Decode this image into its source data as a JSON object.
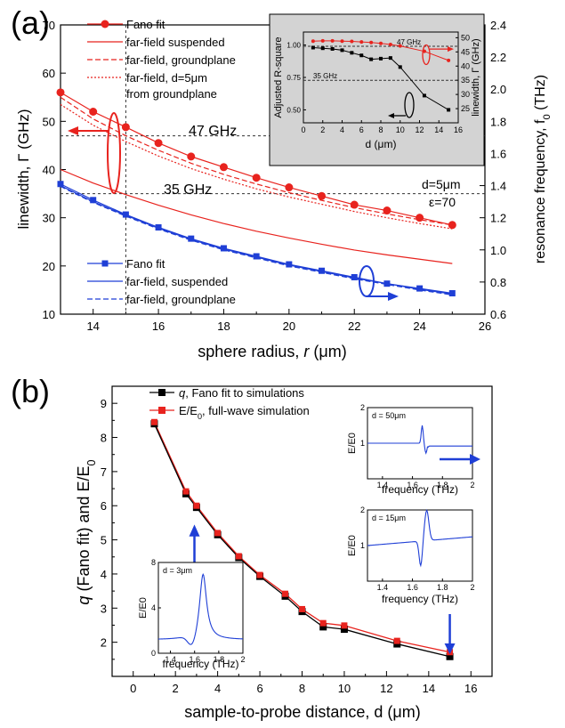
{
  "panel_a": {
    "label": "(a)",
    "xlabel_prefix": "sphere radius, ",
    "xlabel_var": "r",
    "xlabel_unit": " (μm)",
    "ylabel_left": "linewidth, Γ (GHz)",
    "ylabel_right": "resonance frequency, f",
    "ylabel_right_sub": "0",
    "ylabel_right_unit": " (THz)",
    "x_ticks": [
      "14",
      "16",
      "18",
      "20",
      "22",
      "24",
      "26"
    ],
    "y_left_ticks": [
      "10",
      "20",
      "30",
      "40",
      "50",
      "60",
      "70"
    ],
    "y_right_ticks": [
      "0.6",
      "0.8",
      "1.0",
      "1.2",
      "1.4",
      "1.6",
      "1.8",
      "2.0",
      "2.2",
      "2.4"
    ],
    "annotation_47": "47 GHz",
    "annotation_35": "35 GHz",
    "annotation_d": "d=5μm",
    "annotation_eps": "ε=70",
    "legend_red": [
      "Fano fit",
      "far-field suspended",
      "far-field, groundplane",
      "far-field, d=5μm",
      "from groundplane"
    ],
    "legend_blue": [
      "Fano fit",
      "far-field, suspended",
      "far-field, groundplane"
    ],
    "inset": {
      "ylabel_left": "Adjusted R-square",
      "ylabel_right": "linewidth, Γ (GHz)",
      "xlabel": "d (μm)",
      "x_ticks": [
        "0",
        "2",
        "4",
        "6",
        "8",
        "10",
        "12",
        "14",
        "16"
      ],
      "y_left_ticks": [
        "0.50",
        "0.75",
        "1.00"
      ],
      "y_right_ticks": [
        "25",
        "30",
        "35",
        "40",
        "45",
        "50"
      ],
      "annotation_47": "47 GHz",
      "annotation_35": "35 GHz"
    }
  },
  "panel_b": {
    "label": "(b)",
    "xlabel": "sample-to-probe distance, d (μm)",
    "ylabel_q": "q",
    "ylabel_rest": " (Fano fit) and E/E",
    "ylabel_sub": "0",
    "x_ticks": [
      "0",
      "2",
      "4",
      "6",
      "8",
      "10",
      "12",
      "14",
      "16"
    ],
    "y_ticks": [
      "2",
      "3",
      "4",
      "5",
      "6",
      "7",
      "8",
      "9"
    ],
    "legend": [
      "q, Fano fit to simulations",
      "E/E0, full-wave simulation"
    ],
    "legend_q": "q",
    "legend_q_rest": ", Fano fit to simulations",
    "legend_e_rest": "E/E",
    "legend_e_sub": "0",
    "legend_e_tail": ", full-wave simulation",
    "insets": [
      {
        "label": "d = 50μm",
        "xlabel": "frequency (THz)",
        "ylabel": "E/E0",
        "x_ticks": [
          "1.4",
          "1.6",
          "1.8",
          "2"
        ],
        "y_ticks": [
          "1",
          "2"
        ]
      },
      {
        "label": "d = 15μm",
        "xlabel": "frequency (THz)",
        "ylabel": "E/E0",
        "x_ticks": [
          "1.4",
          "1.6",
          "1.8",
          "2"
        ],
        "y_ticks": [
          "1",
          "2"
        ]
      },
      {
        "label": "d = 3μm",
        "xlabel": "frequency (THz)",
        "ylabel": "E/E0",
        "x_ticks": [
          "1.4",
          "1.6",
          "1.8",
          "2"
        ],
        "y_ticks": [
          "0",
          "4",
          "8"
        ]
      }
    ]
  },
  "colors": {
    "red": "#e8231e",
    "blue": "#1f3fd6",
    "black": "#000000",
    "inset_bg": "#d3d3d3"
  },
  "chart_data": [
    {
      "type": "line",
      "xlim": [
        13,
        26
      ],
      "ylim": [
        10,
        70
      ],
      "y2lim": [
        0.6,
        2.4
      ],
      "series": [
        {
          "name": "Fano fit",
          "axis": "left",
          "x": [
            13,
            14,
            15,
            16,
            17,
            18,
            19,
            20,
            21,
            22,
            23,
            24,
            25
          ],
          "values": [
            56,
            52,
            48.8,
            45.5,
            42.7,
            40.5,
            38.3,
            36.3,
            34.5,
            32.7,
            31.5,
            30,
            28.5
          ]
        },
        {
          "name": "far-field suspended",
          "axis": "left",
          "x": [
            13,
            14,
            15,
            16,
            17,
            18,
            19,
            20,
            21,
            22,
            23,
            24,
            25
          ],
          "values": [
            40,
            37.2,
            34.8,
            32.6,
            30.6,
            28.8,
            27.2,
            25.8,
            24.5,
            23.3,
            22.3,
            21.4,
            20.5
          ]
        },
        {
          "name": "far-field, groundplane",
          "axis": "left",
          "x": [
            13,
            14,
            15,
            16,
            17,
            18,
            19,
            20,
            21,
            22,
            23,
            24,
            25
          ],
          "values": [
            55,
            50.5,
            47,
            44,
            41.3,
            39,
            37,
            35.2,
            33.6,
            32.1,
            30.8,
            29.6,
            28.5
          ]
        },
        {
          "name": "far-field, d=5μm from groundplane",
          "axis": "left",
          "x": [
            13,
            14,
            15,
            16,
            17,
            18,
            19,
            20,
            21,
            22,
            23,
            24,
            25
          ],
          "values": [
            53.5,
            49.2,
            45.8,
            42.8,
            40.2,
            38,
            36,
            34.3,
            32.8,
            31.3,
            30,
            28.8,
            27.7
          ]
        },
        {
          "name": "Fano fit",
          "axis": "right",
          "x": [
            13,
            14,
            15,
            16,
            17,
            18,
            19,
            20,
            21,
            22,
            23,
            24,
            25
          ],
          "values": [
            1.41,
            1.31,
            1.22,
            1.14,
            1.07,
            1.01,
            0.96,
            0.91,
            0.87,
            0.83,
            0.79,
            0.76,
            0.73
          ]
        },
        {
          "name": "far-field, suspended",
          "axis": "right",
          "x": [
            13,
            14,
            15,
            16,
            17,
            18,
            19,
            20,
            21,
            22,
            23,
            24,
            25
          ],
          "values": [
            1.4,
            1.3,
            1.215,
            1.135,
            1.065,
            1.005,
            0.955,
            0.905,
            0.865,
            0.825,
            0.79,
            0.755,
            0.725
          ]
        },
        {
          "name": "far-field, groundplane",
          "axis": "right",
          "x": [
            13,
            14,
            15,
            16,
            17,
            18,
            19,
            20,
            21,
            22,
            23,
            24,
            25
          ],
          "values": [
            1.395,
            1.295,
            1.21,
            1.13,
            1.06,
            1.0,
            0.95,
            0.9,
            0.86,
            0.82,
            0.785,
            0.75,
            0.72
          ]
        }
      ],
      "inset": {
        "xlim": [
          0,
          16
        ],
        "ylim": [
          0.4,
          1.1
        ],
        "y2lim": [
          20,
          52
        ],
        "series": [
          {
            "name": "Adjusted R-square",
            "axis": "left",
            "x": [
              1,
              2,
              3,
              4,
              5,
              6,
              7,
              8,
              9,
              10,
              12.5,
              15
            ],
            "values": [
              0.98,
              0.975,
              0.97,
              0.96,
              0.94,
              0.92,
              0.89,
              0.895,
              0.9,
              0.83,
              0.61,
              0.5
            ]
          },
          {
            "name": "linewidth",
            "axis": "right",
            "x": [
              1,
              2,
              3,
              4,
              5,
              6,
              7,
              8,
              9,
              10,
              12.5,
              15
            ],
            "values": [
              48.8,
              48.9,
              48.9,
              48.8,
              48.7,
              48.5,
              48.3,
              48.0,
              47.6,
              47.1,
              45.2,
              42.0
            ]
          }
        ]
      }
    },
    {
      "type": "line",
      "xlim": [
        -1,
        17
      ],
      "ylim": [
        1,
        9.5
      ],
      "series": [
        {
          "name": "q, Fano fit to simulations",
          "x": [
            1,
            2.5,
            3,
            4,
            5,
            6,
            7.2,
            8,
            9,
            10,
            12.5,
            15
          ],
          "values": [
            8.4,
            6.35,
            5.95,
            5.15,
            4.48,
            3.93,
            3.35,
            2.9,
            2.45,
            2.38,
            1.95,
            1.58
          ]
        },
        {
          "name": "E/E0, full-wave simulation",
          "x": [
            1,
            2.5,
            3,
            4,
            5,
            6,
            7.2,
            8,
            9,
            10,
            12.5,
            15
          ],
          "values": [
            8.45,
            6.42,
            6.0,
            5.2,
            4.52,
            3.97,
            3.42,
            2.97,
            2.56,
            2.49,
            2.04,
            1.71
          ]
        }
      ]
    }
  ]
}
